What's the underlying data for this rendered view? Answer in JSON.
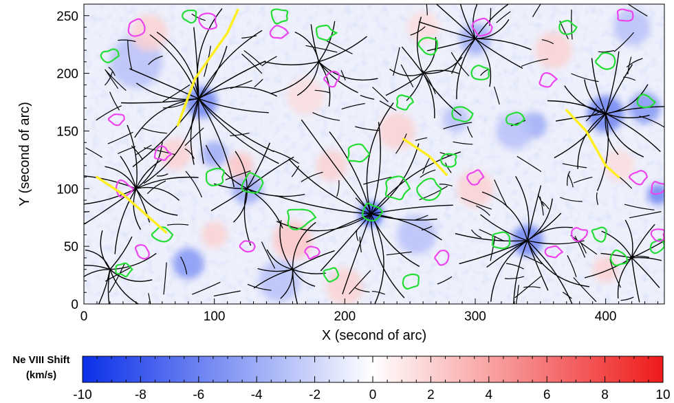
{
  "chart_data": {
    "type": "heatmap",
    "title": "",
    "xlabel": "X (second of arc)",
    "ylabel": "Y (second of arc)",
    "xlim": [
      0,
      445
    ],
    "ylim": [
      0,
      260
    ],
    "x_ticks": [
      0,
      100,
      200,
      300,
      400
    ],
    "y_ticks": [
      0,
      50,
      100,
      150,
      200,
      250
    ],
    "grid": false,
    "colorbar": {
      "label": "Ne VIII Shift (km/s)",
      "label_line1": "Ne VIII Shift",
      "label_line2": "(km/s)",
      "range": [
        -10,
        10
      ],
      "ticks": [
        -10,
        -8,
        -6,
        -4,
        -2,
        0,
        2,
        4,
        6,
        8,
        10
      ],
      "color_min": "#0a2fe8",
      "color_mid": "#ffffff",
      "color_max": "#ee1a1a"
    },
    "overlays": {
      "field_lines_color": "#000000",
      "positive_contour_color": "#22dd33",
      "negative_contour_color": "#ee44ee",
      "neutral_line_color": "#ffee22"
    },
    "blue_spots": [
      {
        "x": 220,
        "y": 78,
        "r": 9,
        "v": -9
      },
      {
        "x": 90,
        "y": 175,
        "r": 12,
        "v": -6
      },
      {
        "x": 340,
        "y": 55,
        "r": 12,
        "v": -6
      },
      {
        "x": 400,
        "y": 165,
        "r": 14,
        "v": -6
      },
      {
        "x": 430,
        "y": 170,
        "r": 12,
        "v": -5
      },
      {
        "x": 125,
        "y": 100,
        "r": 12,
        "v": -4
      },
      {
        "x": 100,
        "y": 130,
        "r": 10,
        "v": -4
      },
      {
        "x": 80,
        "y": 35,
        "r": 12,
        "v": -5
      },
      {
        "x": 345,
        "y": 155,
        "r": 10,
        "v": -4
      },
      {
        "x": 440,
        "y": 95,
        "r": 8,
        "v": -6
      },
      {
        "x": 300,
        "y": 230,
        "r": 12,
        "v": -4
      },
      {
        "x": 40,
        "y": 210,
        "r": 20,
        "v": -3
      },
      {
        "x": 255,
        "y": 60,
        "r": 15,
        "v": -3
      },
      {
        "x": 420,
        "y": 240,
        "r": 14,
        "v": -3
      },
      {
        "x": 150,
        "y": 20,
        "r": 16,
        "v": -3
      },
      {
        "x": 330,
        "y": 150,
        "r": 14,
        "v": -3
      },
      {
        "x": 285,
        "y": 160,
        "r": 10,
        "v": -3
      }
    ],
    "red_spots": [
      {
        "x": 160,
        "y": 55,
        "r": 15,
        "v": 2.5
      },
      {
        "x": 190,
        "y": 120,
        "r": 12,
        "v": 2
      },
      {
        "x": 240,
        "y": 150,
        "r": 14,
        "v": 2
      },
      {
        "x": 70,
        "y": 130,
        "r": 12,
        "v": 2
      },
      {
        "x": 300,
        "y": 100,
        "r": 14,
        "v": 2
      },
      {
        "x": 360,
        "y": 220,
        "r": 14,
        "v": 2
      },
      {
        "x": 50,
        "y": 235,
        "r": 14,
        "v": 2
      },
      {
        "x": 100,
        "y": 60,
        "r": 10,
        "v": 2
      },
      {
        "x": 120,
        "y": 120,
        "r": 10,
        "v": 2.5
      },
      {
        "x": 200,
        "y": 15,
        "r": 14,
        "v": 2
      },
      {
        "x": 400,
        "y": 30,
        "r": 10,
        "v": 2
      },
      {
        "x": 260,
        "y": 240,
        "r": 12,
        "v": 1.5
      },
      {
        "x": 410,
        "y": 120,
        "r": 12,
        "v": 1.5
      },
      {
        "x": 170,
        "y": 180,
        "r": 14,
        "v": 1.5
      }
    ],
    "neutral_lines": [
      [
        [
          118,
          255
        ],
        [
          110,
          235
        ],
        [
          85,
          195
        ],
        [
          72,
          155
        ]
      ],
      [
        [
          10,
          110
        ],
        [
          30,
          95
        ],
        [
          50,
          75
        ],
        [
          63,
          62
        ]
      ],
      [
        [
          245,
          143
        ],
        [
          265,
          128
        ],
        [
          278,
          112
        ]
      ],
      [
        [
          370,
          168
        ],
        [
          385,
          150
        ],
        [
          400,
          120
        ],
        [
          410,
          110
        ]
      ]
    ],
    "field_line_centers": [
      {
        "x": 88,
        "y": 178,
        "n": 20,
        "len": 70
      },
      {
        "x": 220,
        "y": 78,
        "n": 18,
        "len": 75
      },
      {
        "x": 340,
        "y": 55,
        "n": 16,
        "len": 55
      },
      {
        "x": 400,
        "y": 165,
        "n": 16,
        "len": 50
      },
      {
        "x": 40,
        "y": 100,
        "n": 14,
        "len": 45
      },
      {
        "x": 125,
        "y": 100,
        "n": 10,
        "len": 40
      },
      {
        "x": 300,
        "y": 230,
        "n": 12,
        "len": 45
      },
      {
        "x": 20,
        "y": 30,
        "n": 10,
        "len": 35
      },
      {
        "x": 160,
        "y": 30,
        "n": 10,
        "len": 35
      },
      {
        "x": 260,
        "y": 200,
        "n": 10,
        "len": 40
      },
      {
        "x": 420,
        "y": 40,
        "n": 10,
        "len": 35
      },
      {
        "x": 180,
        "y": 210,
        "n": 10,
        "len": 40
      }
    ],
    "positive_contours": [
      {
        "x": 220,
        "y": 80,
        "r": 7
      },
      {
        "x": 320,
        "y": 55,
        "r": 8
      },
      {
        "x": 100,
        "y": 110,
        "r": 8
      },
      {
        "x": 130,
        "y": 105,
        "r": 9
      },
      {
        "x": 165,
        "y": 75,
        "r": 10
      },
      {
        "x": 210,
        "y": 130,
        "r": 8
      },
      {
        "x": 240,
        "y": 100,
        "r": 10
      },
      {
        "x": 265,
        "y": 100,
        "r": 9
      },
      {
        "x": 280,
        "y": 125,
        "r": 6
      },
      {
        "x": 290,
        "y": 165,
        "r": 7
      },
      {
        "x": 245,
        "y": 175,
        "r": 6
      },
      {
        "x": 265,
        "y": 225,
        "r": 8
      },
      {
        "x": 305,
        "y": 200,
        "r": 7
      },
      {
        "x": 330,
        "y": 160,
        "r": 6
      },
      {
        "x": 370,
        "y": 240,
        "r": 6
      },
      {
        "x": 400,
        "y": 210,
        "r": 7
      },
      {
        "x": 430,
        "y": 175,
        "r": 7
      },
      {
        "x": 60,
        "y": 60,
        "r": 7
      },
      {
        "x": 30,
        "y": 30,
        "r": 6
      },
      {
        "x": 190,
        "y": 25,
        "r": 6
      },
      {
        "x": 250,
        "y": 20,
        "r": 7
      },
      {
        "x": 395,
        "y": 60,
        "r": 6
      },
      {
        "x": 410,
        "y": 40,
        "r": 7
      },
      {
        "x": 440,
        "y": 50,
        "r": 6
      },
      {
        "x": 150,
        "y": 250,
        "r": 7
      },
      {
        "x": 185,
        "y": 235,
        "r": 7
      },
      {
        "x": 80,
        "y": 250,
        "r": 6
      },
      {
        "x": 20,
        "y": 215,
        "r": 6
      }
    ],
    "negative_contours": [
      {
        "x": 40,
        "y": 240,
        "r": 7
      },
      {
        "x": 95,
        "y": 245,
        "r": 7
      },
      {
        "x": 150,
        "y": 235,
        "r": 6
      },
      {
        "x": 190,
        "y": 195,
        "r": 6
      },
      {
        "x": 25,
        "y": 160,
        "r": 6
      },
      {
        "x": 60,
        "y": 130,
        "r": 6
      },
      {
        "x": 30,
        "y": 100,
        "r": 7
      },
      {
        "x": 45,
        "y": 45,
        "r": 6
      },
      {
        "x": 175,
        "y": 45,
        "r": 6
      },
      {
        "x": 305,
        "y": 240,
        "r": 7
      },
      {
        "x": 355,
        "y": 195,
        "r": 6
      },
      {
        "x": 415,
        "y": 250,
        "r": 6
      },
      {
        "x": 425,
        "y": 110,
        "r": 6
      },
      {
        "x": 440,
        "y": 100,
        "r": 6
      },
      {
        "x": 300,
        "y": 110,
        "r": 6
      },
      {
        "x": 380,
        "y": 60,
        "r": 6
      },
      {
        "x": 360,
        "y": 45,
        "r": 6
      },
      {
        "x": 275,
        "y": 40,
        "r": 6
      },
      {
        "x": 125,
        "y": 50,
        "r": 6
      },
      {
        "x": 440,
        "y": 60,
        "r": 6
      }
    ]
  }
}
